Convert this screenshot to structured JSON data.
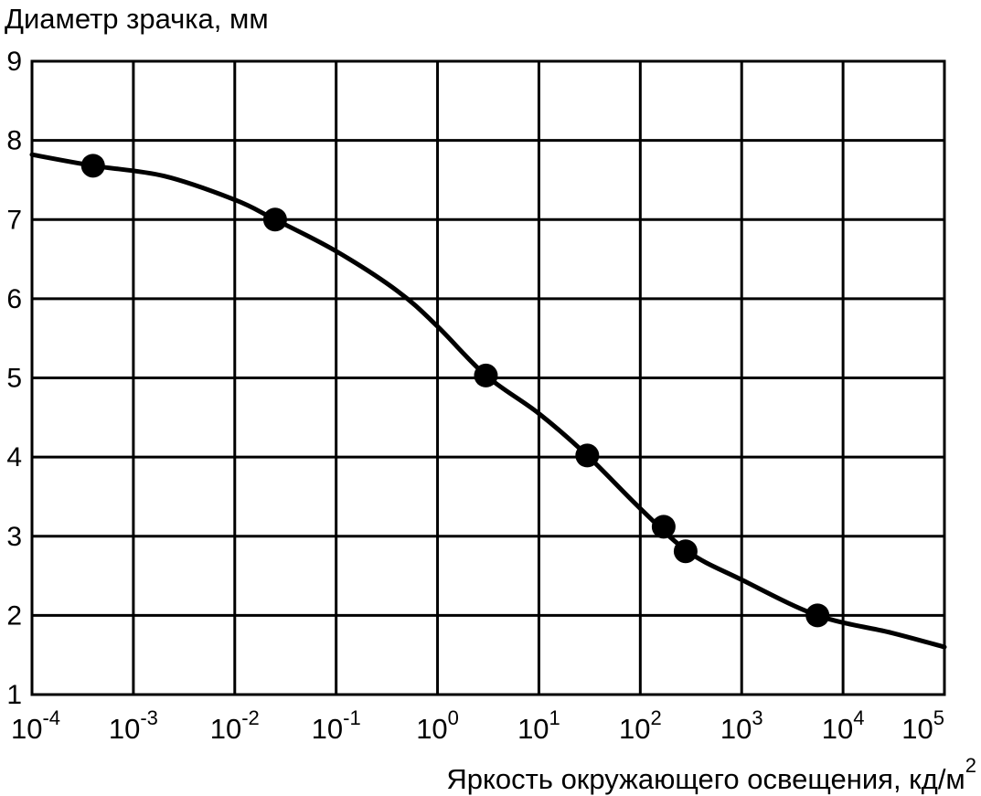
{
  "chart_data": {
    "type": "scatter",
    "title": "",
    "ylabel": "Диаметр зрачка, мм",
    "xlabel": "Яркость окружающего освещения, кд/м",
    "xlabel_superscript": "2",
    "xscale": "log",
    "xlim": [
      0.0001,
      100000
    ],
    "ylim": [
      1,
      9
    ],
    "grid": true,
    "legend": "none",
    "x_ticks": [
      {
        "base": "10",
        "exp": "-4",
        "value": 0.0001
      },
      {
        "base": "10",
        "exp": "-3",
        "value": 0.001
      },
      {
        "base": "10",
        "exp": "-2",
        "value": 0.01
      },
      {
        "base": "10",
        "exp": "-1",
        "value": 0.1
      },
      {
        "base": "10",
        "exp": "0",
        "value": 1
      },
      {
        "base": "10",
        "exp": "1",
        "value": 10
      },
      {
        "base": "10",
        "exp": "2",
        "value": 100
      },
      {
        "base": "10",
        "exp": "3",
        "value": 1000
      },
      {
        "base": "10",
        "exp": "4",
        "value": 10000
      },
      {
        "base": "10",
        "exp": "5",
        "value": 100000
      }
    ],
    "y_ticks": [
      "1",
      "2",
      "3",
      "4",
      "5",
      "6",
      "7",
      "8",
      "9"
    ],
    "series": [
      {
        "kind": "points",
        "x": [
          0.0004,
          0.025,
          3.0,
          30.0,
          170.0,
          280.0,
          5600.0
        ],
        "y": [
          7.68,
          7.0,
          5.03,
          4.02,
          3.12,
          2.81,
          2.0
        ]
      },
      {
        "kind": "curve",
        "x": [
          0.0001,
          0.0004,
          0.002,
          0.01,
          0.025,
          0.1,
          0.4,
          1.0,
          3.0,
          10.0,
          30.0,
          100.0,
          300.0,
          1000.0,
          5600.0,
          30000.0,
          100000.0
        ],
        "y": [
          7.82,
          7.68,
          7.55,
          7.25,
          7.0,
          6.6,
          6.1,
          5.65,
          5.03,
          4.55,
          4.02,
          3.35,
          2.8,
          2.45,
          2.0,
          1.78,
          1.6
        ]
      }
    ],
    "colors": {
      "line": "#000000",
      "grid": "#000000",
      "marker": "#000000"
    }
  }
}
